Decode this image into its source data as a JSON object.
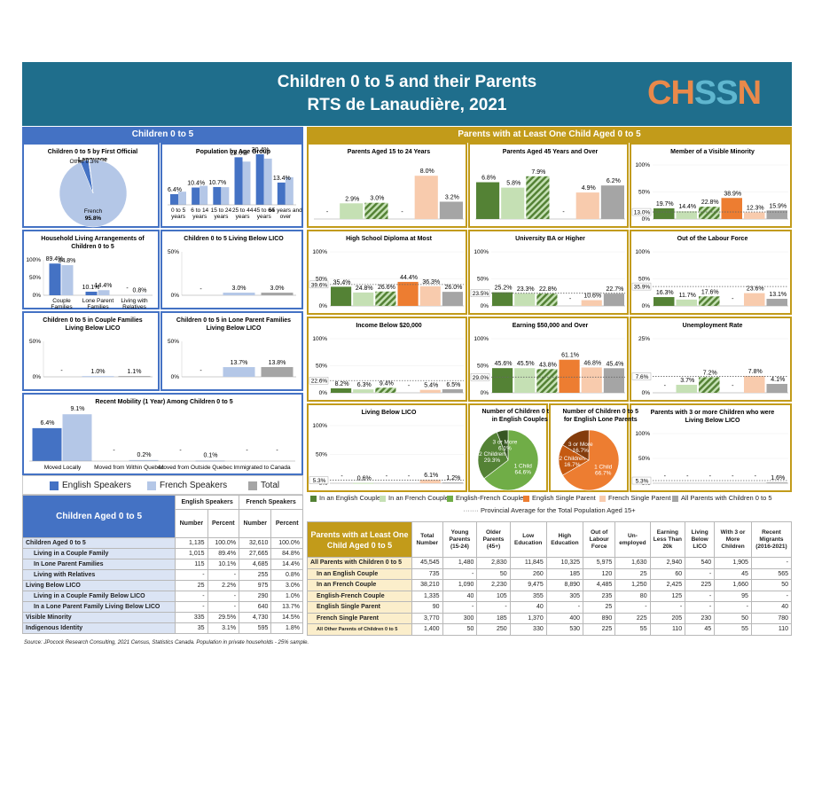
{
  "title_line1": "Children 0 to 5 and their Parents",
  "title_line2": "RTS de Lanaudière, 2021",
  "logo": {
    "part1": "CH",
    "part2": "SS",
    "part3": "N"
  },
  "colors": {
    "teal": "#1f6e8c",
    "blue": "#4472c4",
    "lightblue": "#b4c7e7",
    "gray": "#a5a5a5",
    "gold": "#c29b1a",
    "green": "#548235",
    "lightgreen": "#c5e0b4",
    "hatch": "#70ad47",
    "orange": "#ed7d31",
    "peach": "#f8cbad"
  },
  "left_header": "Children 0 to 5",
  "right_header": "Parents with at Least One Child Aged 0 to 5",
  "chart_data": [
    {
      "id": "lang",
      "type": "pie",
      "title": "Children 0 to 5 by First Official Language",
      "labels": [
        "French",
        "English",
        "Other"
      ],
      "values": [
        95.8,
        3.9,
        0.3
      ],
      "label_texts": [
        "French\n95.8%",
        "",
        "Other 0.3%"
      ]
    },
    {
      "id": "age",
      "type": "bar",
      "title": "Population by Age Group",
      "categories": [
        "0 to 5 years",
        "6 to 14 years",
        "15 to 24 years",
        "25 to 44 years",
        "45 to 64 years",
        "65 years and over"
      ],
      "series": [
        {
          "name": "English Speakers",
          "values": [
            6.4,
            10.4,
            10.7,
            28.6,
            30.4,
            13.4
          ]
        },
        {
          "name": "French Speakers",
          "values": [
            7.9,
            11.4,
            10.6,
            26.0,
            27.8,
            16.6
          ]
        }
      ],
      "labels": [
        "6.4%",
        "10.4%",
        "10.7%",
        "28.6%",
        "30.4%",
        "13.4%"
      ]
    },
    {
      "id": "household",
      "type": "bar",
      "title": "Household Living Arrangements of Children 0 to 5",
      "categories": [
        "Couple Families",
        "Lone Parent Families",
        "Living with Relatives"
      ],
      "series": [
        {
          "name": "English Speakers",
          "values": [
            89.4,
            10.1,
            null
          ]
        },
        {
          "name": "French Speakers",
          "values": [
            84.8,
            14.4,
            0.8
          ]
        }
      ],
      "ylim": [
        0,
        100
      ],
      "yticks": [
        "0%",
        "50%",
        "100%"
      ]
    },
    {
      "id": "licoall",
      "type": "bar",
      "title": "Children 0 to 5 Living Below LICO",
      "series": [
        {
          "name": "English Speakers",
          "values": [
            null
          ]
        },
        {
          "name": "French Speakers",
          "values": [
            3.0
          ]
        },
        {
          "name": "Total",
          "values": [
            3.0
          ]
        }
      ],
      "ylim": [
        0,
        50
      ],
      "yticks": [
        "0%",
        "50%"
      ]
    },
    {
      "id": "licocouple",
      "type": "bar",
      "title": "Children 0 to 5 in Couple Families Living Below LICO",
      "series": [
        {
          "name": "English Speakers",
          "values": [
            null
          ]
        },
        {
          "name": "French Speakers",
          "values": [
            1.0
          ]
        },
        {
          "name": "Total",
          "values": [
            1.1
          ]
        }
      ],
      "ylim": [
        0,
        50
      ],
      "yticks": [
        "0%",
        "50%"
      ]
    },
    {
      "id": "licolone",
      "type": "bar",
      "title": "Children 0 to 5 in Lone Parent Families Living Below LICO",
      "series": [
        {
          "name": "English Speakers",
          "values": [
            null
          ]
        },
        {
          "name": "French Speakers",
          "values": [
            13.7
          ]
        },
        {
          "name": "Total",
          "values": [
            13.8
          ]
        }
      ],
      "ylim": [
        0,
        50
      ],
      "yticks": [
        "0%",
        "50%"
      ]
    },
    {
      "id": "mobility",
      "type": "bar",
      "title": "Recent Mobility (1 Year) Among Children 0 to 5",
      "categories": [
        "Moved Locally",
        "Moved from Within Quebec",
        "Moved from Outside Quebec",
        "Immigrated to Canada"
      ],
      "series": [
        {
          "name": "English Speakers",
          "values": [
            6.4,
            null,
            null,
            null
          ]
        },
        {
          "name": "French Speakers",
          "values": [
            9.1,
            0.2,
            0.1,
            null
          ]
        }
      ]
    }
  ],
  "legend_left": [
    "English Speakers",
    "French Speakers",
    "Total"
  ],
  "right_charts_meta": {
    "series_names": [
      "In an English Couple",
      "In an French Couple",
      "English-French Couple",
      "English Single Parent",
      "French Single Parent",
      "All Parents with Children 0 to 5"
    ],
    "provincial_label": "Provincial Average for the Total Population Aged 15+"
  },
  "right_charts": [
    {
      "title": "Parents Aged 15 to 24 Years",
      "values": [
        null,
        2.9,
        3.0,
        null,
        8.0,
        3.2
      ],
      "prov": null,
      "ymax": 10,
      "yticks": []
    },
    {
      "title": "Parents Aged 45 Years and Over",
      "values": [
        6.8,
        5.8,
        7.9,
        null,
        4.9,
        6.2
      ],
      "prov": null,
      "ymax": 10,
      "yticks": []
    },
    {
      "title": "Member of a Visible Minority",
      "values": [
        19.7,
        14.4,
        22.8,
        38.9,
        12.3,
        15.9
      ],
      "prov": 13.0,
      "prov_label": "13.0%",
      "ymax": 100,
      "yticks": [
        "0%",
        "50%",
        "100%"
      ]
    },
    {
      "title": "High School Diploma at Most",
      "values": [
        35.4,
        24.8,
        26.6,
        44.4,
        36.3,
        26.0
      ],
      "prov": 39.6,
      "prov_label": "39.6%",
      "ymax": 100,
      "yticks": [
        "0%",
        "50%",
        "100%"
      ]
    },
    {
      "title": "University BA or Higher",
      "values": [
        25.2,
        23.3,
        22.8,
        null,
        10.6,
        22.7
      ],
      "prov": 23.5,
      "prov_label": "23.5%",
      "ymax": 100,
      "yticks": [
        "0%",
        "50%",
        "100%"
      ]
    },
    {
      "title": "Out of the Labour Force",
      "values": [
        16.3,
        11.7,
        17.6,
        null,
        23.6,
        13.1
      ],
      "prov": 35.9,
      "prov_label": "35.9%",
      "ymax": 100,
      "yticks": [
        "0%",
        "50%",
        "100%"
      ]
    },
    {
      "title": "Income Below $20,000",
      "values": [
        8.2,
        6.3,
        9.4,
        null,
        5.4,
        6.5
      ],
      "prov": 22.6,
      "prov_label": "22.6%",
      "ymax": 100,
      "yticks": [
        "0%",
        "50%",
        "100%"
      ]
    },
    {
      "title": "Earning $50,000 and Over",
      "values": [
        45.6,
        45.5,
        43.8,
        61.1,
        46.8,
        45.4
      ],
      "prov": 29.0,
      "prov_label": "29.0%",
      "ymax": 100,
      "yticks": [
        "0%",
        "50%",
        "100%"
      ]
    },
    {
      "title": "Unemployment Rate",
      "values": [
        null,
        3.7,
        7.2,
        null,
        7.8,
        4.1
      ],
      "prov": 7.6,
      "prov_label": "7.6%",
      "ymax": 25,
      "yticks": [
        "0%",
        "25%"
      ]
    },
    {
      "title": "Living Below LICO",
      "values": [
        null,
        0.6,
        null,
        null,
        6.1,
        1.2
      ],
      "prov": 5.3,
      "prov_label": "5.3%",
      "ymax": 100,
      "yticks": [
        "0%",
        "50%",
        "100%"
      ]
    },
    {
      "title": "Parents with 3 or more Children who were Living Below LICO",
      "values": [
        null,
        null,
        null,
        null,
        null,
        1.6
      ],
      "prov": 5.3,
      "prov_label": "5.3%",
      "ymax": 100,
      "yticks": [
        "0%",
        "50%",
        "100%"
      ]
    }
  ],
  "pies_right": [
    {
      "title": "Number of Children 0 to 5 in English Couples",
      "labels": [
        "1 Child",
        "2 Children",
        "3 or More"
      ],
      "values": [
        64.6,
        29.3,
        6.1
      ],
      "texts": [
        "1 Child\n64.6%",
        "2 Children\n29.3%",
        "3 or More\n6.1%"
      ]
    },
    {
      "title": "Number of Children 0 to 5 for English Lone Parents",
      "labels": [
        "1 Child",
        "2 Children",
        "3 or More"
      ],
      "values": [
        66.7,
        16.7,
        16.7
      ],
      "texts": [
        "1 Child\n66.7%",
        "2 Children\n16.7%",
        "3 or More\n16.7%"
      ]
    }
  ],
  "table_left": {
    "title": "Children Aged 0 to 5",
    "groups": [
      "English Speakers",
      "French Speakers"
    ],
    "cols": [
      "Number",
      "Percent",
      "Number",
      "Percent"
    ],
    "rows": [
      [
        "Children Aged 0 to 5",
        "1,135",
        "100.0%",
        "32,610",
        "100.0%"
      ],
      [
        "Living in a Couple Family",
        "1,015",
        "89.4%",
        "27,665",
        "84.8%"
      ],
      [
        "In Lone Parent Families",
        "115",
        "10.1%",
        "4,685",
        "14.4%"
      ],
      [
        "Living with Relatives",
        "-",
        "-",
        "255",
        "0.8%"
      ],
      [
        "Living Below LICO",
        "25",
        "2.2%",
        "975",
        "3.0%"
      ],
      [
        "Living in a Couple Family Below LICO",
        "-",
        "-",
        "290",
        "1.0%"
      ],
      [
        "In a Lone Parent Family Living Below LICO",
        "-",
        "-",
        "640",
        "13.7%"
      ],
      [
        "Visible Minority",
        "335",
        "29.5%",
        "4,730",
        "14.5%"
      ],
      [
        "Indigenous Identity",
        "35",
        "3.1%",
        "595",
        "1.8%"
      ]
    ]
  },
  "table_right": {
    "title": "Parents with at Least One Child Aged 0 to 5",
    "cols": [
      "Total Number",
      "Young Parents (15-24)",
      "Older Parents (45+)",
      "Low Education",
      "High Education",
      "Out of Labour Force",
      "Un-employed",
      "Earning Less Than 20k",
      "Living Below LICO",
      "With 3 or More Children",
      "Recent Migrants (2016-2021)"
    ],
    "rows": [
      [
        "All Parents with Children 0 to 5",
        "45,545",
        "1,480",
        "2,830",
        "11,845",
        "10,325",
        "5,975",
        "1,630",
        "2,940",
        "540",
        "1,905",
        "-"
      ],
      [
        "In an English Couple",
        "735",
        "-",
        "50",
        "260",
        "185",
        "120",
        "25",
        "60",
        "-",
        "45",
        "565"
      ],
      [
        "In an French Couple",
        "38,210",
        "1,090",
        "2,230",
        "9,475",
        "8,890",
        "4,485",
        "1,250",
        "2,425",
        "225",
        "1,660",
        "50"
      ],
      [
        "English-French Couple",
        "1,335",
        "40",
        "105",
        "355",
        "305",
        "235",
        "80",
        "125",
        "-",
        "95",
        "-"
      ],
      [
        "English Single Parent",
        "90",
        "-",
        "-",
        "40",
        "-",
        "25",
        "-",
        "-",
        "-",
        "-",
        "40"
      ],
      [
        "French Single Parent",
        "3,770",
        "300",
        "185",
        "1,370",
        "400",
        "890",
        "225",
        "205",
        "230",
        "50",
        "780"
      ],
      [
        "All Other Parents of Children 0 to 5",
        "1,400",
        "50",
        "250",
        "330",
        "530",
        "225",
        "55",
        "110",
        "45",
        "55",
        "110"
      ]
    ]
  },
  "source": "Source: JPocock Research Consulting, 2021 Census, Statistics Canada. Population in private households - 25% sample."
}
